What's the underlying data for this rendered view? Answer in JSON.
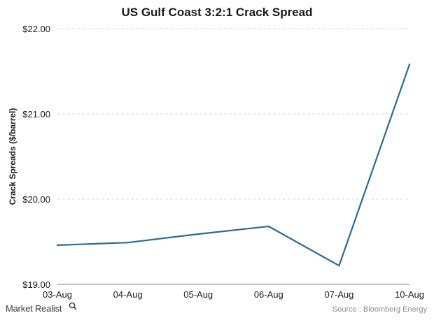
{
  "chart_data": {
    "type": "line",
    "title": "US Gulf Coast 3:2:1 Crack Spread",
    "xlabel": "",
    "ylabel": "Crack Spreads ($/barrel)",
    "categories": [
      "03-Aug",
      "04-Aug",
      "05-Aug",
      "06-Aug",
      "07-Aug",
      "10-Aug"
    ],
    "series": [
      {
        "values": [
          19.46,
          19.49,
          19.59,
          19.68,
          19.22,
          21.58
        ],
        "color": "#2b6a93"
      }
    ],
    "ylim": [
      19.0,
      22.0
    ],
    "yticks": [
      19.0,
      20.0,
      21.0,
      22.0
    ],
    "ytick_labels": [
      "$19.00",
      "$20.00",
      "$21.00",
      "$22.00"
    ],
    "grid": true,
    "legend": "none"
  },
  "footer": {
    "brand": "Market Realist",
    "source": "Source : Bloomberg Energy"
  }
}
